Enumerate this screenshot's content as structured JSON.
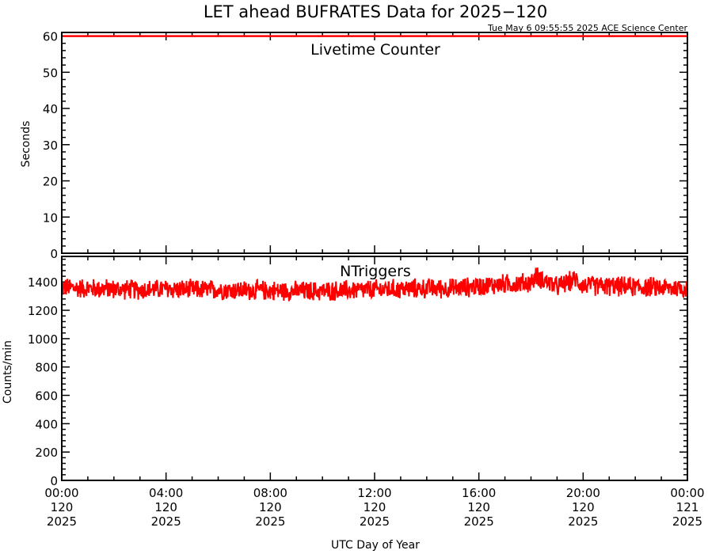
{
  "title": "LET ahead BUFRATES Data for 2025−120",
  "timestamp": "Tue May  6 09:55:55 2025 ACE Science Center",
  "colors": {
    "line": "#ff0000",
    "label": "#0000ff",
    "axis": "#000000"
  },
  "xaxis": {
    "label": "UTC Day of Year",
    "ticks": [
      {
        "hours": 0,
        "time": "00:00",
        "doy": "120",
        "year": "2025"
      },
      {
        "hours": 4,
        "time": "04:00",
        "doy": "120",
        "year": "2025"
      },
      {
        "hours": 8,
        "time": "08:00",
        "doy": "120",
        "year": "2025"
      },
      {
        "hours": 12,
        "time": "12:00",
        "doy": "120",
        "year": "2025"
      },
      {
        "hours": 16,
        "time": "16:00",
        "doy": "120",
        "year": "2025"
      },
      {
        "hours": 20,
        "time": "20:00",
        "doy": "120",
        "year": "2025"
      },
      {
        "hours": 24,
        "time": "00:00",
        "doy": "121",
        "year": "2025"
      }
    ]
  },
  "chart_data": [
    {
      "type": "line",
      "series_label": "Livetime Counter",
      "ylabel": "Seconds",
      "ylim": [
        0,
        61
      ],
      "yticks": [
        0,
        10,
        20,
        30,
        40,
        50,
        60
      ],
      "x_unit": "hours of day 120",
      "x": [
        0,
        24
      ],
      "y": [
        60,
        60
      ]
    },
    {
      "type": "line",
      "series_label": "NTriggers",
      "ylabel": "Counts/min",
      "ylim": [
        0,
        1580
      ],
      "yticks": [
        0,
        200,
        400,
        600,
        800,
        1000,
        1200,
        1400
      ],
      "x_unit": "hours of day 120",
      "x": [
        0,
        1,
        2,
        3,
        4,
        5,
        6,
        7,
        8,
        9,
        10,
        11,
        12,
        13,
        14,
        15,
        16,
        17,
        18,
        18.2,
        19,
        19.7,
        20,
        21,
        22,
        23,
        24
      ],
      "y": [
        1360,
        1355,
        1350,
        1345,
        1350,
        1345,
        1345,
        1340,
        1340,
        1335,
        1335,
        1340,
        1345,
        1350,
        1355,
        1355,
        1370,
        1385,
        1395,
        1440,
        1365,
        1420,
        1375,
        1370,
        1365,
        1360,
        1355
      ],
      "noise_amplitude": 80
    }
  ]
}
